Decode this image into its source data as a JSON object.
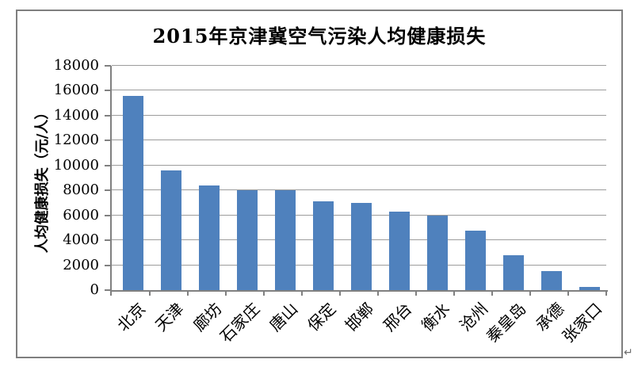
{
  "page": {
    "paragraph_mark": "↵"
  },
  "chart_data": {
    "type": "bar",
    "title": "2015年京津冀空气污染人均健康损失",
    "xlabel": "",
    "ylabel": "人均健康损失（元/人）",
    "categories": [
      "北京",
      "天津",
      "廊坊",
      "石家庄",
      "唐山",
      "保定",
      "邯郸",
      "邢台",
      "衡水",
      "沧州",
      "秦皇岛",
      "承德",
      "张家口"
    ],
    "values": [
      15600,
      9600,
      8400,
      8000,
      8000,
      7100,
      7000,
      6300,
      6000,
      4800,
      2800,
      1500,
      250
    ],
    "ylim": [
      0,
      18000
    ],
    "yticks": [
      0,
      2000,
      4000,
      6000,
      8000,
      10000,
      12000,
      14000,
      16000,
      18000
    ],
    "grid": true,
    "legend": false,
    "bar_color": "#4F81BD",
    "gridline_color": "#9C9C9C",
    "axis_color": "#808080",
    "frame_color": "#7F7F7F"
  }
}
